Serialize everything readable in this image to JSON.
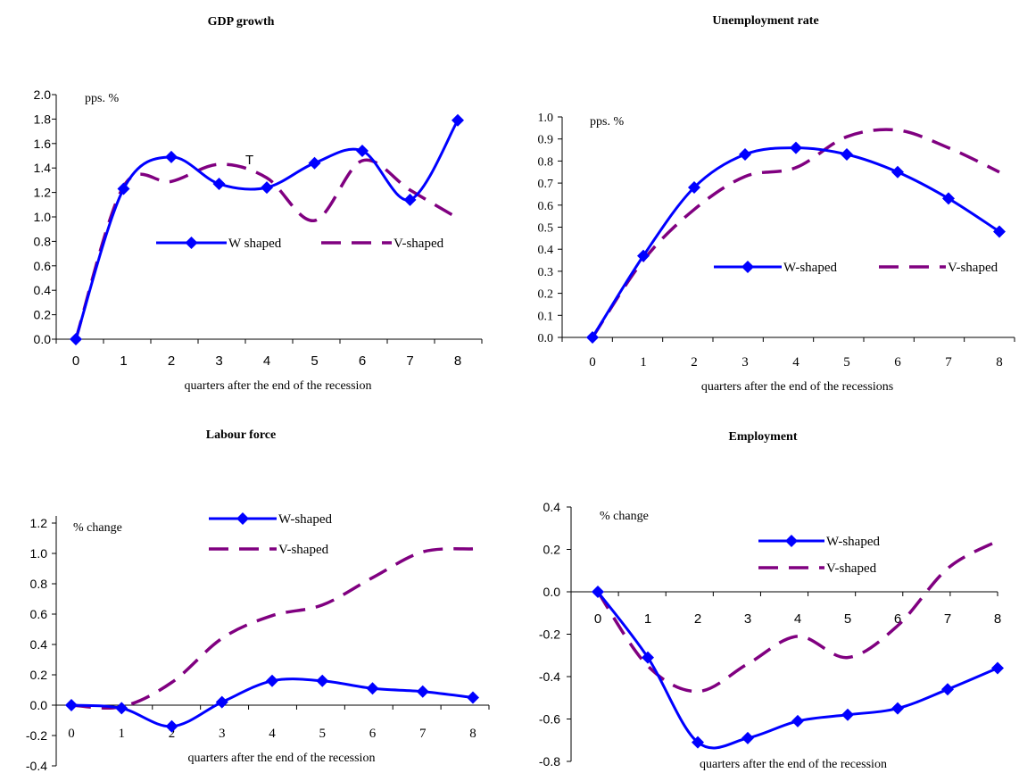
{
  "colors": {
    "w_series": "#0000FF",
    "v_series": "#800080",
    "axis": "#000000"
  },
  "chart_data": [
    {
      "type": "line",
      "title": "GDP growth",
      "unit_label": "pps. %",
      "xlabel": "quarters after the end of the recession",
      "x": [
        0,
        1,
        2,
        3,
        4,
        5,
        6,
        7,
        8
      ],
      "ylim": [
        0,
        2
      ],
      "yticks": [
        "0.0",
        "0.2",
        "0.4",
        "0.6",
        "0.8",
        "1.0",
        "1.2",
        "1.4",
        "1.6",
        "1.8",
        "2.0"
      ],
      "xticks": [
        "0",
        "1",
        "2",
        "3",
        "4",
        "5",
        "6",
        "7",
        "8"
      ],
      "annotation": "T",
      "series": [
        {
          "name": "W shaped",
          "values": [
            0.0,
            1.23,
            1.49,
            1.27,
            1.24,
            1.44,
            1.54,
            1.14,
            1.79
          ]
        },
        {
          "name": "V-shaped",
          "values": [
            0.0,
            1.25,
            1.29,
            1.43,
            1.32,
            0.97,
            1.46,
            1.22,
            0.99
          ]
        }
      ],
      "legend": "middle"
    },
    {
      "type": "line",
      "title": "Unemployment rate",
      "unit_label": "pps. %",
      "xlabel": "quarters after the end of the recessions",
      "x": [
        0,
        1,
        2,
        3,
        4,
        5,
        6,
        7,
        8
      ],
      "ylim": [
        0,
        1
      ],
      "yticks": [
        "0.0",
        "0.1",
        "0.2",
        "0.3",
        "0.4",
        "0.5",
        "0.6",
        "0.7",
        "0.8",
        "0.9",
        "1.0"
      ],
      "xticks": [
        "0",
        "1",
        "2",
        "3",
        "4",
        "5",
        "6",
        "7",
        "8"
      ],
      "series": [
        {
          "name": "W-shaped",
          "values": [
            0.0,
            0.37,
            0.68,
            0.83,
            0.86,
            0.83,
            0.75,
            0.63,
            0.48
          ]
        },
        {
          "name": "V-shaped",
          "values": [
            0.0,
            0.35,
            0.58,
            0.73,
            0.77,
            0.91,
            0.94,
            0.86,
            0.75
          ]
        }
      ],
      "legend": "middle-right"
    },
    {
      "type": "line",
      "title": "Labour force",
      "unit_label": "% change",
      "xlabel": "quarters after the end of the recession",
      "x": [
        0,
        1,
        2,
        3,
        4,
        5,
        6,
        7,
        8
      ],
      "ylim": [
        -0.4,
        1.2
      ],
      "yticks": [
        "-0.4",
        "-0.2",
        "0.0",
        "0.2",
        "0.4",
        "0.6",
        "0.8",
        "1.0",
        "1.2"
      ],
      "xticks": [
        "0",
        "1",
        "2",
        "3",
        "4",
        "5",
        "6",
        "7",
        "8"
      ],
      "series": [
        {
          "name": "W-shaped",
          "values": [
            0.0,
            -0.02,
            -0.14,
            0.02,
            0.16,
            0.16,
            0.11,
            0.09,
            0.05
          ]
        },
        {
          "name": "V-shaped",
          "values": [
            0.0,
            -0.01,
            0.15,
            0.44,
            0.59,
            0.66,
            0.84,
            1.01,
            1.03
          ]
        }
      ],
      "legend": "top-center"
    },
    {
      "type": "line",
      "title": "Employment",
      "unit_label": "% change",
      "xlabel": "quarters after the end of the recession",
      "x": [
        0,
        1,
        2,
        3,
        4,
        5,
        6,
        7,
        8
      ],
      "ylim": [
        -0.8,
        0.4
      ],
      "yticks": [
        "-0.8",
        "-0.6",
        "-0.4",
        "-0.2",
        "0.0",
        "0.2",
        "0.4"
      ],
      "xticks": [
        "0",
        "1",
        "2",
        "3",
        "4",
        "5",
        "6",
        "7",
        "8"
      ],
      "series": [
        {
          "name": "W-shaped",
          "values": [
            0.0,
            -0.31,
            -0.71,
            -0.69,
            -0.61,
            -0.58,
            -0.55,
            -0.46,
            -0.36
          ]
        },
        {
          "name": "V-shaped",
          "values": [
            0.0,
            -0.35,
            -0.47,
            -0.34,
            -0.21,
            -0.31,
            -0.16,
            0.11,
            0.24
          ]
        }
      ],
      "legend": "top-right"
    }
  ]
}
